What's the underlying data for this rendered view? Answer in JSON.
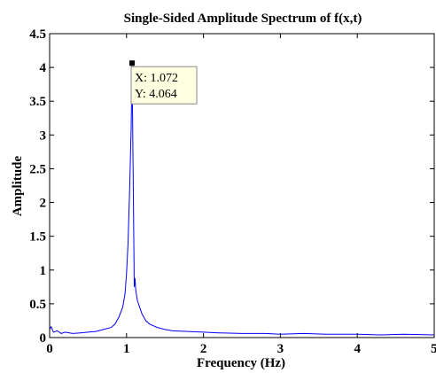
{
  "chart_data": {
    "type": "line",
    "title": "Single-Sided Amplitude Spectrum of f(x,t)",
    "xlabel": "Frequency (Hz)",
    "ylabel": "Amplitude",
    "xlim": [
      0,
      5
    ],
    "ylim": [
      0,
      4.5
    ],
    "x_ticks": [
      "0",
      "1",
      "2",
      "3",
      "4",
      "5"
    ],
    "y_ticks": [
      "0",
      "0.5",
      "1",
      "1.5",
      "2",
      "2.5",
      "3",
      "3.5",
      "4",
      "4.5"
    ],
    "grid": false,
    "line_color": "#0000ff",
    "series": [
      {
        "x": [
          0,
          0.02,
          0.05,
          0.1,
          0.15,
          0.2,
          0.3,
          0.4,
          0.5,
          0.6,
          0.7,
          0.8,
          0.85,
          0.9,
          0.95,
          0.98,
          1.0,
          1.02,
          1.04,
          1.06,
          1.072,
          1.085,
          1.1,
          1.11,
          1.12,
          1.14,
          1.17,
          1.2,
          1.25,
          1.3,
          1.4,
          1.5,
          1.6,
          1.8,
          2.0,
          2.2,
          2.5,
          2.8,
          3.0,
          3.3,
          3.6,
          4.0,
          4.3,
          4.6,
          5.0
        ],
        "y": [
          0.12,
          0.16,
          0.08,
          0.1,
          0.06,
          0.08,
          0.06,
          0.07,
          0.08,
          0.09,
          0.12,
          0.15,
          0.2,
          0.3,
          0.45,
          0.65,
          0.95,
          1.4,
          2.2,
          3.1,
          4.064,
          2.5,
          0.75,
          0.88,
          0.7,
          0.55,
          0.45,
          0.35,
          0.25,
          0.2,
          0.15,
          0.12,
          0.1,
          0.09,
          0.08,
          0.07,
          0.06,
          0.06,
          0.05,
          0.06,
          0.05,
          0.05,
          0.04,
          0.05,
          0.04
        ]
      }
    ],
    "datatip": {
      "x_label": "X: 1.072",
      "y_label": "Y: 4.064",
      "x": 1.072,
      "y": 4.064
    }
  }
}
